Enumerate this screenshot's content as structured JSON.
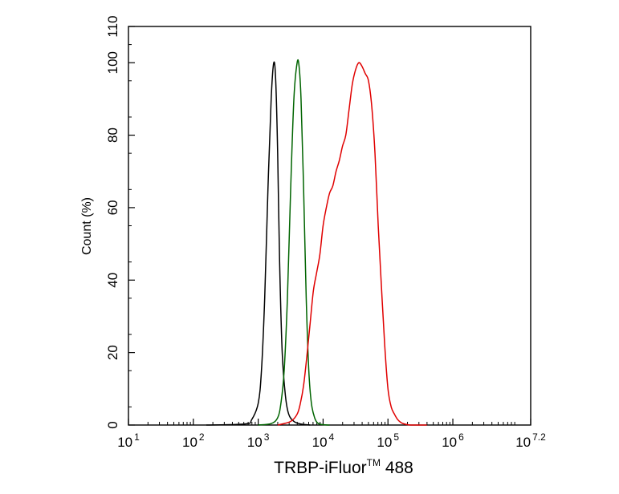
{
  "chart_data": {
    "type": "line",
    "xlabel": "TRBP-iFluor",
    "xlabel_superscript": "TM",
    "xlabel_suffix": " 488",
    "ylabel": "Count  (%)",
    "xscale": "log",
    "xlim": [
      1,
      7.2
    ],
    "ylim": [
      0,
      110
    ],
    "x_ticks": [
      {
        "base": "10",
        "exp": "1",
        "value": 1
      },
      {
        "base": "10",
        "exp": "2",
        "value": 2
      },
      {
        "base": "10",
        "exp": "3",
        "value": 3
      },
      {
        "base": "10",
        "exp": "4",
        "value": 4
      },
      {
        "base": "10",
        "exp": "5",
        "value": 5
      },
      {
        "base": "10",
        "exp": "6",
        "value": 6
      },
      {
        "base": "10",
        "exp": "7.2",
        "value": 7.2
      }
    ],
    "y_ticks": [
      "0",
      "20",
      "40",
      "60",
      "80",
      "100",
      "110"
    ],
    "y_tick_values": [
      0,
      20,
      40,
      60,
      80,
      100,
      110
    ],
    "grid": false,
    "series": [
      {
        "color": "#000000",
        "x": [
          2.2,
          2.8,
          2.9,
          3.0,
          3.05,
          3.1,
          3.15,
          3.2,
          3.24,
          3.27,
          3.3,
          3.33,
          3.37,
          3.42,
          3.47,
          3.55,
          3.65,
          3.8
        ],
        "y": [
          0,
          0.3,
          1.5,
          6,
          15,
          35,
          65,
          90,
          100,
          95,
          75,
          45,
          20,
          8,
          3,
          1,
          0.3,
          0
        ]
      },
      {
        "color": "#006400",
        "x": [
          3.0,
          3.2,
          3.3,
          3.35,
          3.4,
          3.45,
          3.5,
          3.55,
          3.6,
          3.63,
          3.66,
          3.7,
          3.74,
          3.78,
          3.82,
          3.87,
          3.92,
          4.0,
          4.1
        ],
        "y": [
          0,
          0.4,
          2,
          6,
          15,
          35,
          65,
          90,
          100,
          99,
          90,
          65,
          35,
          15,
          6,
          2,
          0.5,
          0.1,
          0
        ]
      },
      {
        "color": "#e00000",
        "x": [
          3.3,
          3.5,
          3.6,
          3.65,
          3.7,
          3.75,
          3.8,
          3.85,
          3.9,
          3.95,
          4.0,
          4.05,
          4.1,
          4.15,
          4.2,
          4.25,
          4.3,
          4.35,
          4.4,
          4.45,
          4.5,
          4.55,
          4.6,
          4.65,
          4.7,
          4.75,
          4.8,
          4.85,
          4.9,
          4.95,
          5.0,
          5.05,
          5.1,
          5.15,
          5.2,
          5.25,
          5.3,
          5.35,
          5.45,
          5.6
        ],
        "y": [
          0,
          1,
          3,
          6,
          11,
          19,
          28,
          37,
          42,
          47,
          55,
          60,
          64,
          66,
          70,
          73,
          77,
          80,
          87,
          94,
          98,
          100,
          99,
          97,
          95,
          88,
          75,
          55,
          38,
          22,
          10,
          5,
          3,
          1.5,
          0.7,
          0.3,
          0.1,
          0,
          0,
          0
        ]
      }
    ]
  }
}
